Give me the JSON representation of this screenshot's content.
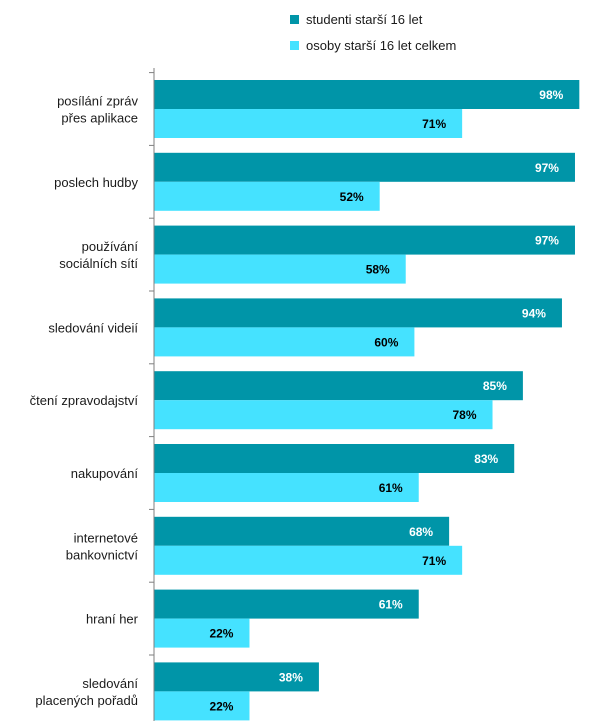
{
  "chart_data": {
    "type": "bar",
    "orientation": "horizontal",
    "categories": [
      [
        "posílání zpráv",
        "přes aplikace"
      ],
      [
        "poslech hudby"
      ],
      [
        "používání",
        "sociálních sítí"
      ],
      [
        "sledování videií"
      ],
      [
        "čtení zpravodajství"
      ],
      [
        "nakupování"
      ],
      [
        "internetové",
        "bankovnictví"
      ],
      [
        "hraní her"
      ],
      [
        "sledování",
        "placených pořadů"
      ]
    ],
    "series": [
      {
        "name": "studenti starší 16 let",
        "color": "#0095A8",
        "values": [
          98,
          97,
          97,
          94,
          85,
          83,
          68,
          61,
          38
        ]
      },
      {
        "name": "osoby starší 16 let celkem",
        "color": "#45E2FF",
        "values": [
          71,
          52,
          58,
          60,
          78,
          61,
          71,
          22,
          22
        ]
      }
    ],
    "value_suffix": "%",
    "xlim": [
      0,
      100
    ],
    "legend_position": "top"
  }
}
